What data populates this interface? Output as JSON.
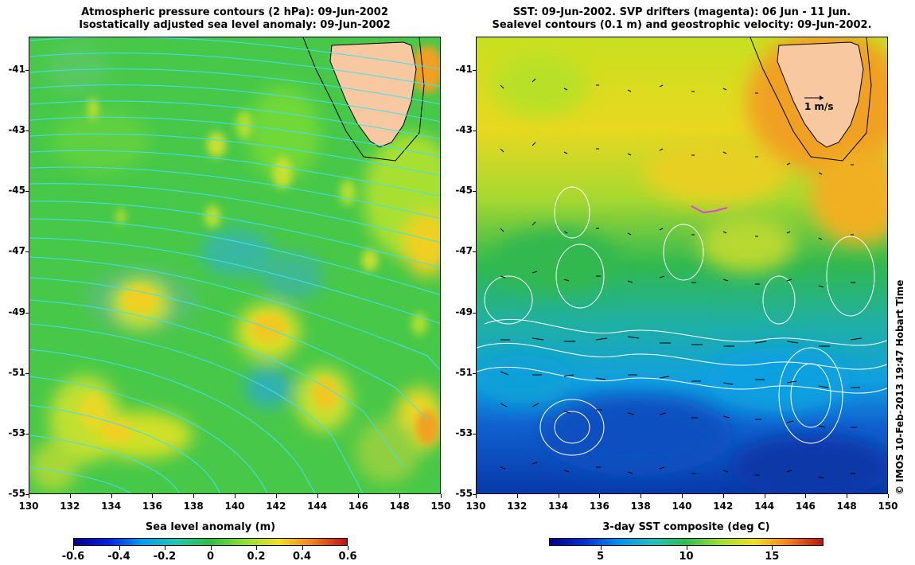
{
  "left_panel": {
    "title_line1": "Atmospheric pressure contours (2 hPa): 09-Jun-2002",
    "title_line2": "Isostatically adjusted sea level anomaly: 09-Jun-2002",
    "colorbar": {
      "title": "Sea level anomaly (m)",
      "ticks": [
        "-0.6",
        "-0.4",
        "-0.2",
        "0",
        "0.2",
        "0.4",
        "0.6"
      ],
      "tick_values": [
        -0.6,
        -0.4,
        -0.2,
        0,
        0.2,
        0.4,
        0.6
      ],
      "range": [
        -0.6,
        0.6
      ]
    }
  },
  "right_panel": {
    "title_line1": "SST: 09-Jun-2002. SVP drifters (magenta): 06 Jun - 11 Jun.",
    "title_line2": "Sealevel contours (0.1 m) and geostrophic velocity: 09-Jun-2002.",
    "vector_scale_label": "1 m/s",
    "colorbar": {
      "title": "3-day SST composite (deg C)",
      "ticks": [
        "5",
        "10",
        "15"
      ],
      "tick_values": [
        5,
        10,
        15
      ],
      "range": [
        2,
        18
      ]
    }
  },
  "axes": {
    "y_ticks": [
      "-41",
      "-43",
      "-45",
      "-47",
      "-49",
      "-51",
      "-53",
      "-55"
    ],
    "y_values": [
      -41,
      -43,
      -45,
      -47,
      -49,
      -51,
      -53,
      -55
    ],
    "x_ticks": [
      "130",
      "132",
      "134",
      "136",
      "138",
      "140",
      "142",
      "144",
      "146",
      "148",
      "150"
    ],
    "x_values": [
      130,
      132,
      134,
      136,
      138,
      140,
      142,
      144,
      146,
      148,
      150
    ],
    "lat_range": [
      -55,
      -39.9
    ],
    "lon_range": [
      130,
      150
    ]
  },
  "credit": "© IMOS 10-Feb-2013 19:47 Hobart Time",
  "colors": {
    "land": "#f8c8a0",
    "pressure_contour": "#40e0f0",
    "sealevel_contour": "#ffffff",
    "drifter": "#e040e0"
  },
  "icons": {
    "vector-arrow-icon": "→"
  }
}
